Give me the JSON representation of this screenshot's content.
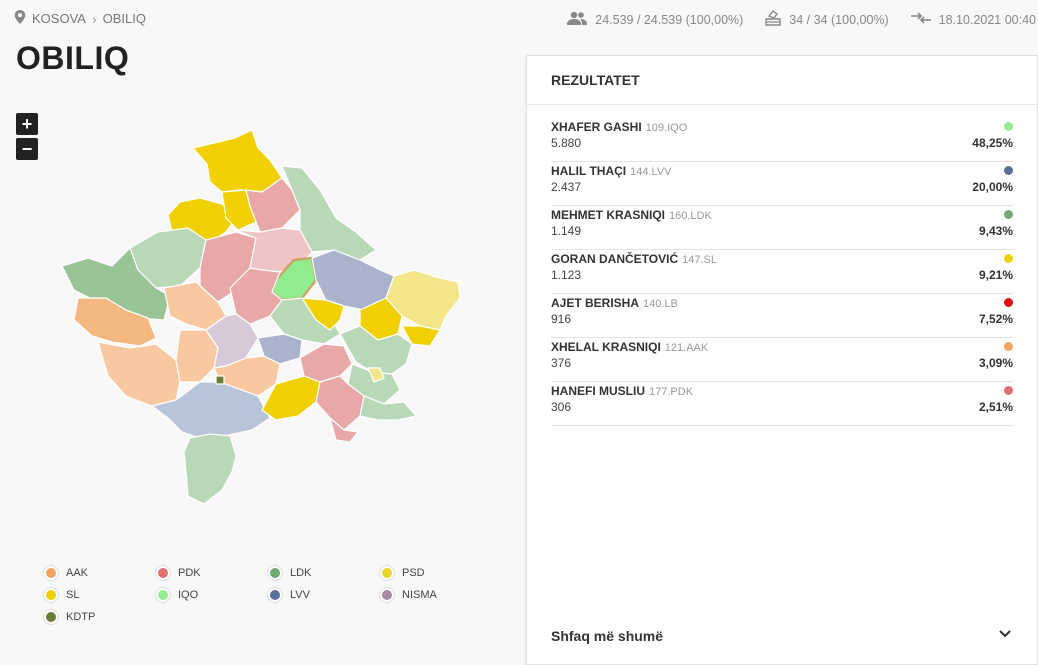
{
  "breadcrumb": {
    "root": "KOSOVA",
    "current": "OBILIQ"
  },
  "stats": {
    "voters": "24.539 / 24.539 (100,00%)",
    "stations": "34 / 34 (100,00%)",
    "updated": "18.10.2021 00:40"
  },
  "title": "OBILIQ",
  "zoom": {
    "in": "+",
    "out": "−"
  },
  "legend": [
    {
      "label": "AAK",
      "color": "#f4a460"
    },
    {
      "label": "PDK",
      "color": "#e07070"
    },
    {
      "label": "LDK",
      "color": "#74a874"
    },
    {
      "label": "PSD",
      "color": "#e8d32a"
    },
    {
      "label": "SL",
      "color": "#f0d000"
    },
    {
      "label": "IQO",
      "color": "#90ee90"
    },
    {
      "label": "LVV",
      "color": "#5b6f9f"
    },
    {
      "label": "NISMA",
      "color": "#a58aa8"
    },
    {
      "label": "KDTP",
      "color": "#6b7d3b"
    }
  ],
  "panel": {
    "title": "REZULTATET",
    "more_label": "Shfaq më shumë",
    "results": [
      {
        "name": "XHAFER GASHI",
        "code": "109.IQO",
        "votes": "5.880",
        "percent": "48,25%",
        "color": "#90ee90"
      },
      {
        "name": "HALIL THAÇI",
        "code": "144.LVV",
        "votes": "2.437",
        "percent": "20,00%",
        "color": "#5b6f9f"
      },
      {
        "name": "MEHMET KRASNIQI",
        "code": "160.LDK",
        "votes": "1.149",
        "percent": "9,43%",
        "color": "#74a874"
      },
      {
        "name": "GORAN DANČETOVIĆ",
        "code": "147.SL",
        "votes": "1.123",
        "percent": "9,21%",
        "color": "#f0d000"
      },
      {
        "name": "AJET BERISHA",
        "code": "140.LB",
        "votes": "916",
        "percent": "7,52%",
        "color": "#e01010"
      },
      {
        "name": "XHELAL KRASNIQI",
        "code": "121.AAK",
        "votes": "376",
        "percent": "3,09%",
        "color": "#f4a460"
      },
      {
        "name": "HANEFI MUSLIU",
        "code": "177.PDK",
        "votes": "306",
        "percent": "2,51%",
        "color": "#e07070"
      }
    ]
  }
}
